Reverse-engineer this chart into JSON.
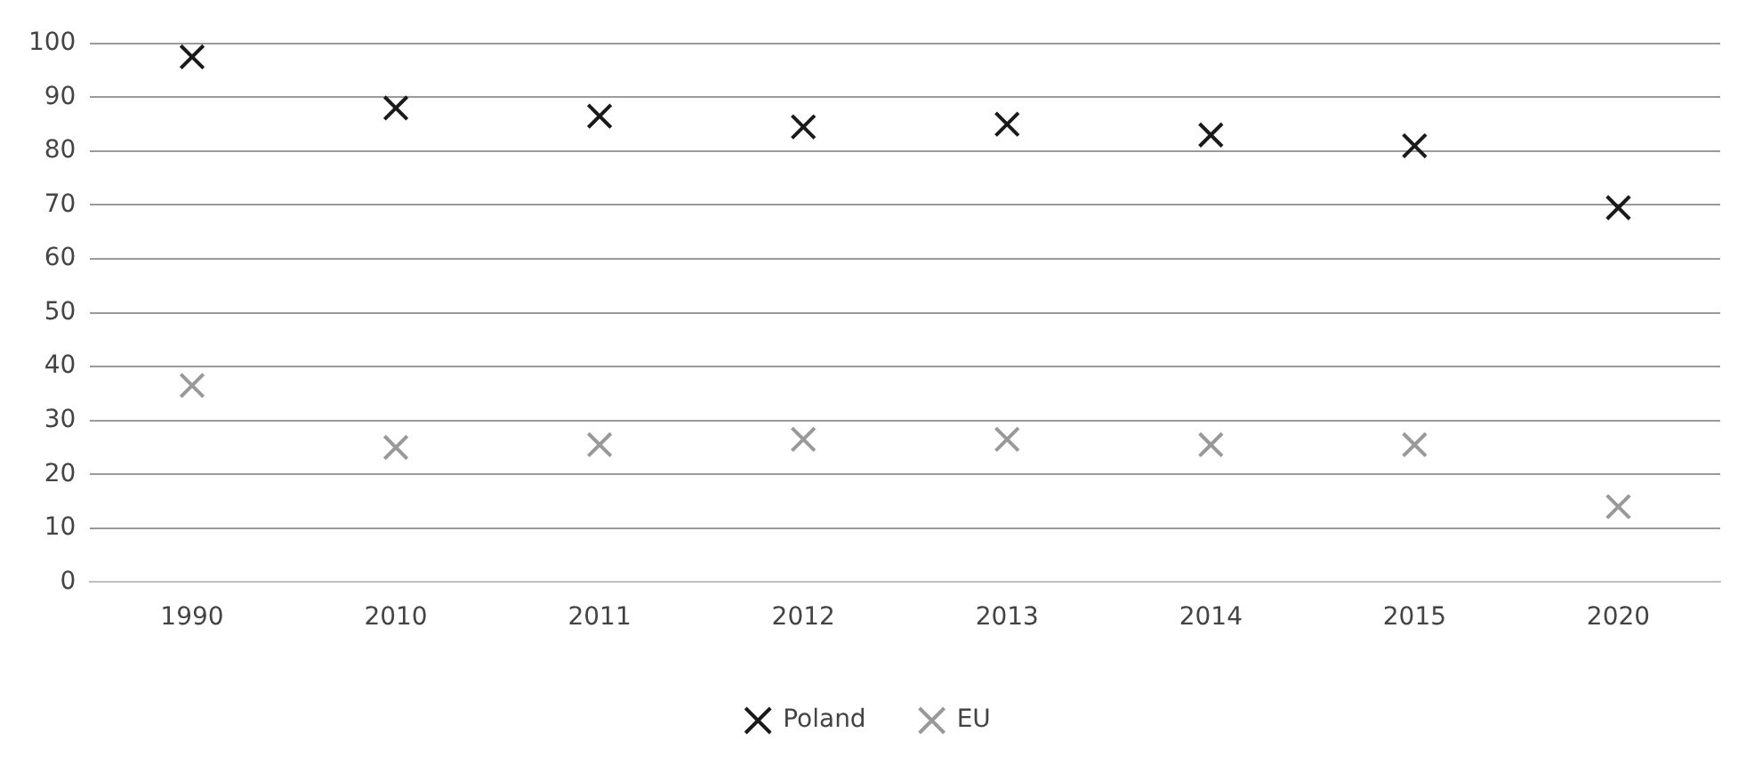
{
  "chart_data": {
    "type": "scatter",
    "categories": [
      "1990",
      "2010",
      "2011",
      "2012",
      "2013",
      "2014",
      "2015",
      "2020"
    ],
    "series": [
      {
        "name": "Poland",
        "color": "#1a1a1a",
        "values": [
          97.5,
          88,
          86.5,
          84.5,
          85,
          83,
          81,
          69.5
        ]
      },
      {
        "name": "EU",
        "color": "#999999",
        "values": [
          36.5,
          25,
          25.5,
          26.5,
          26.5,
          25.5,
          25.5,
          14
        ]
      }
    ],
    "ylim": [
      0,
      100
    ],
    "yticks": [
      0,
      10,
      20,
      30,
      40,
      50,
      60,
      70,
      80,
      90,
      100
    ],
    "grid": "y",
    "legend": "bottom",
    "marker": "cross"
  }
}
